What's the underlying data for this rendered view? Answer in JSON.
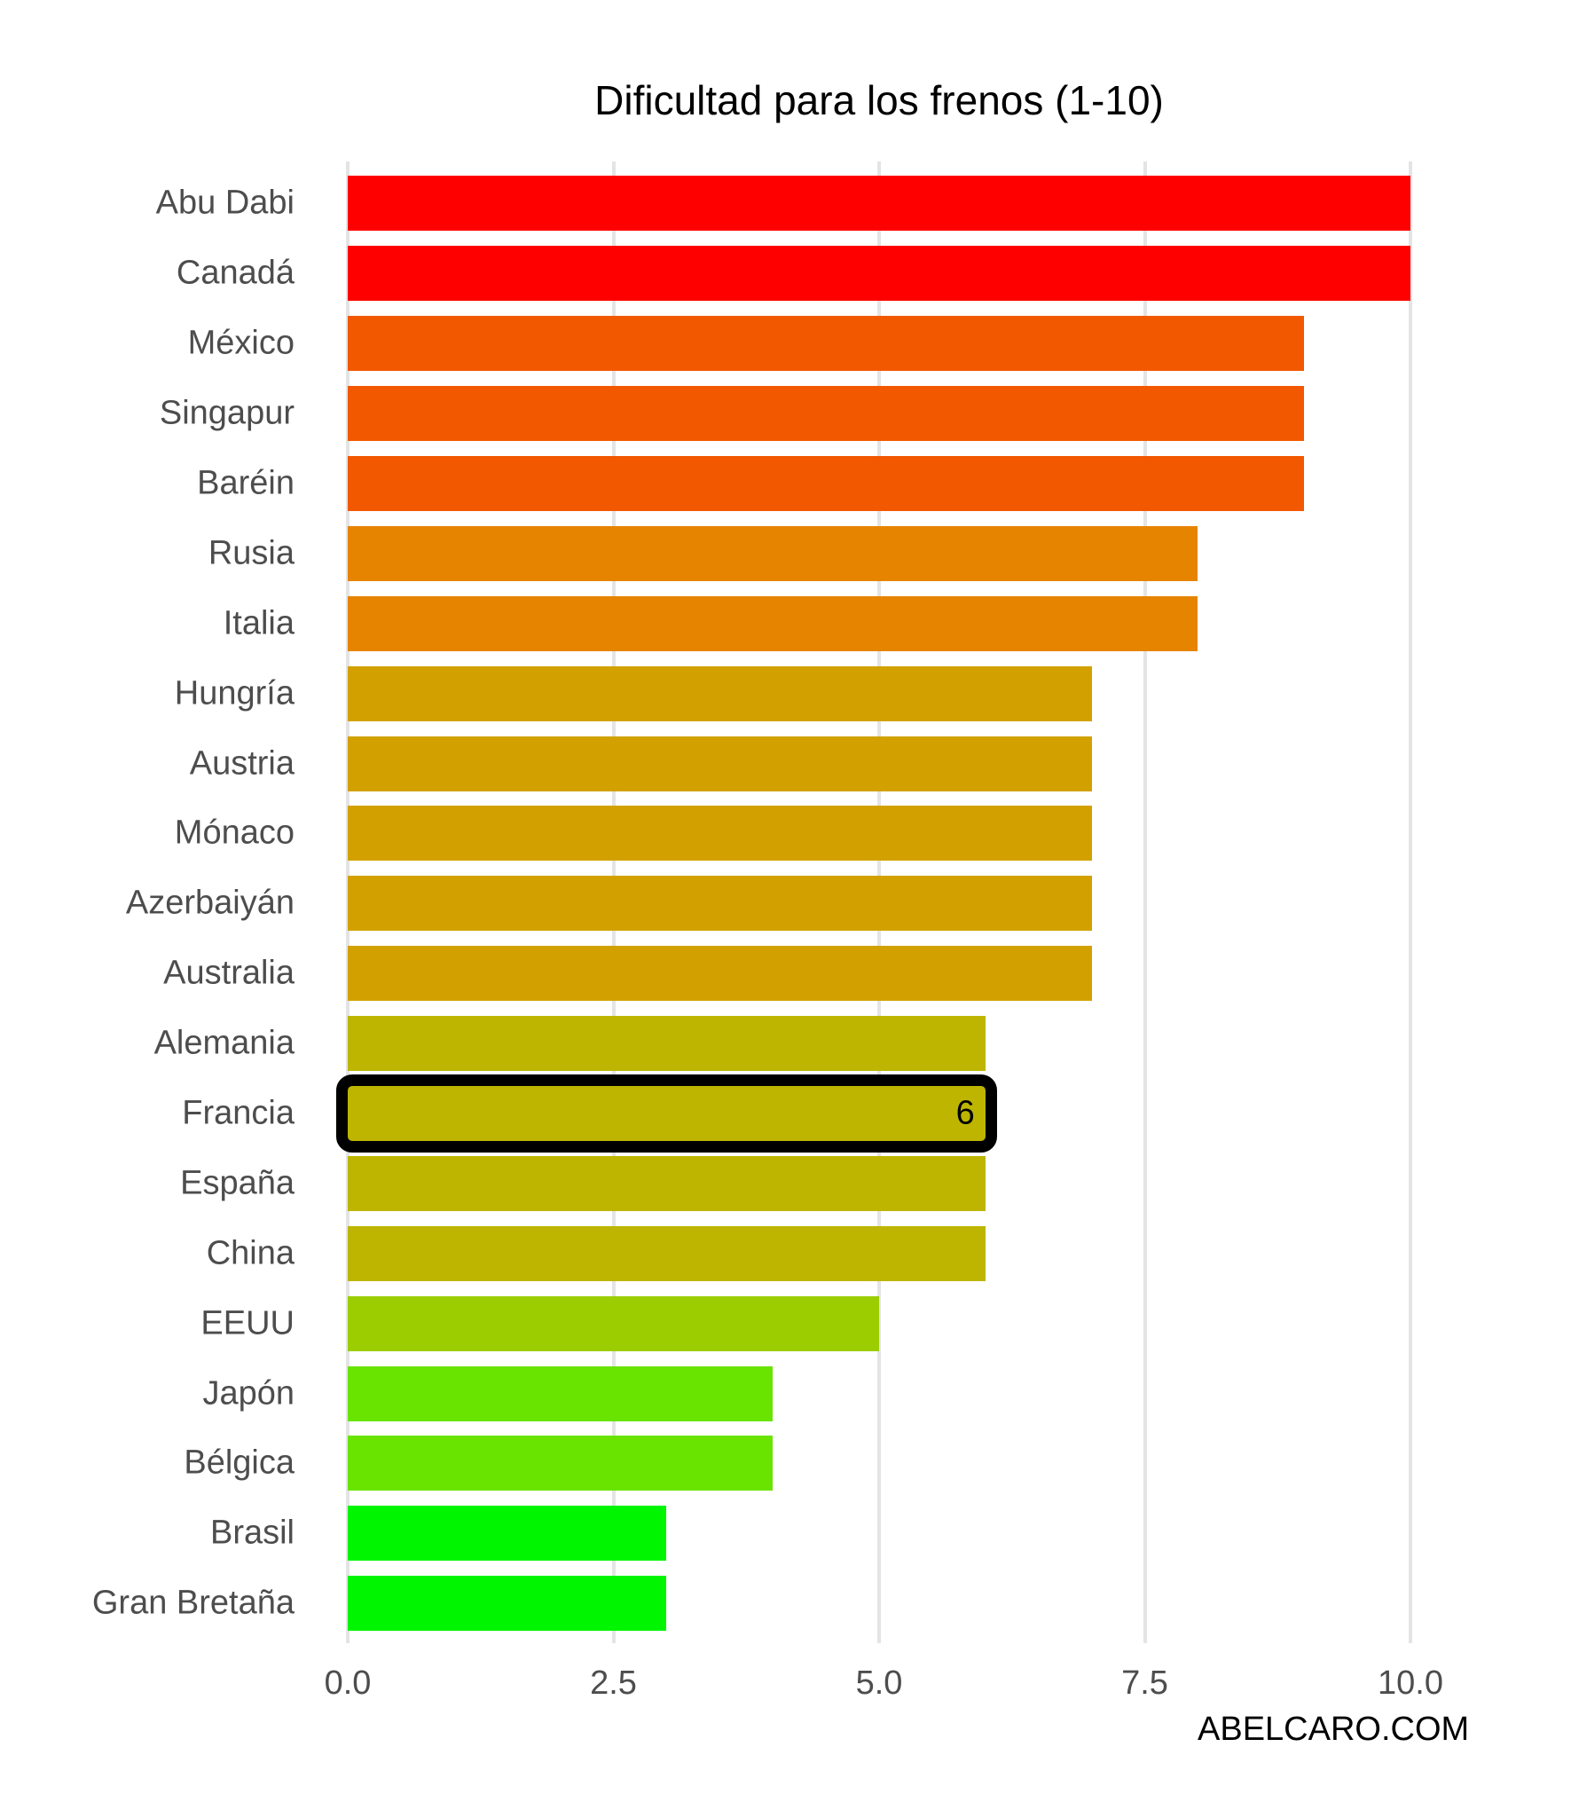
{
  "chart_data": {
    "type": "bar",
    "orientation": "horizontal",
    "title": "Dificultad para los frenos (1-10)",
    "categories": [
      "Abu Dabi",
      "Canadá",
      "México",
      "Singapur",
      "Baréin",
      "Rusia",
      "Italia",
      "Hungría",
      "Austria",
      "Mónaco",
      "Azerbaiyán",
      "Australia",
      "Alemania",
      "Francia",
      "España",
      "China",
      "EEUU",
      "Japón",
      "Bélgica",
      "Brasil",
      "Gran Bretaña"
    ],
    "values": [
      10,
      10,
      9,
      9,
      9,
      8,
      8,
      7,
      7,
      7,
      7,
      7,
      6,
      6,
      6,
      6,
      5,
      4,
      4,
      3,
      3
    ],
    "colors_by_value": {
      "10": "#fe0000",
      "9": "#f25800",
      "8": "#e68400",
      "7": "#d2a100",
      "6": "#bdb500",
      "5": "#9bcd00",
      "4": "#69e300",
      "3": "#00f500"
    },
    "highlight": {
      "category": "Francia",
      "value_label": "6",
      "outline_color": "#000000"
    },
    "x_ticks": [
      "0.0",
      "2.5",
      "5.0",
      "7.5",
      "10.0"
    ],
    "xlim": [
      0,
      10
    ],
    "grid": true,
    "legend": false,
    "gridline_color": "#e4e4e4"
  },
  "watermark": "ABELCARO.COM"
}
